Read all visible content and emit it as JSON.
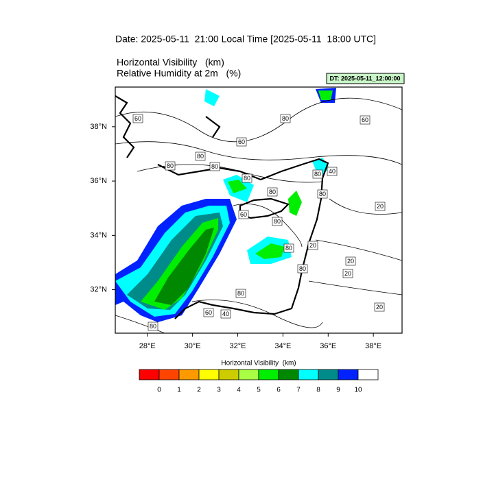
{
  "title": "Date: 2025-05-11  21:00 Local Time [2025-05-11  18:00 UTC]",
  "subtitle_lines": [
    "Horizontal Visibility   (km)",
    "Relative Humidity at 2m   (%)"
  ],
  "dt_label": "DT: 2025-05-11_12:00:00",
  "map": {
    "xlim": [
      26.58,
      39.27
    ],
    "ylim": [
      30.4,
      39.46
    ],
    "xticks": [
      {
        "value": 28,
        "label": "28°E"
      },
      {
        "value": 30,
        "label": "30°E"
      },
      {
        "value": 32,
        "label": "32°E"
      },
      {
        "value": 34,
        "label": "34°E"
      },
      {
        "value": 36,
        "label": "36°E"
      },
      {
        "value": 38,
        "label": "38°E"
      }
    ],
    "yticks": [
      {
        "value": 32,
        "label": "32°N"
      },
      {
        "value": 34,
        "label": "34°N"
      },
      {
        "value": 36,
        "label": "36°N"
      },
      {
        "value": 38,
        "label": "38°N"
      }
    ],
    "contour_labels": [
      "60",
      "80",
      "60",
      "60",
      "80",
      "80",
      "80",
      "80",
      "80",
      "80",
      "40",
      "80",
      "20",
      "60",
      "80",
      "80",
      "20",
      "20",
      "20",
      "80",
      "80",
      "20",
      "60",
      "40",
      "80"
    ]
  },
  "colorbar": {
    "title": "Horizontal Visibility  (km)",
    "colors": [
      "#ff0000",
      "#ff4400",
      "#ff9900",
      "#ffff00",
      "#cccc00",
      "#aaff44",
      "#00ee00",
      "#008800",
      "#00ffff",
      "#008b8b",
      "#0022ff",
      "#ffffff"
    ],
    "levels": [
      0,
      1,
      2,
      3,
      4,
      5,
      6,
      7,
      8,
      9,
      10
    ]
  }
}
